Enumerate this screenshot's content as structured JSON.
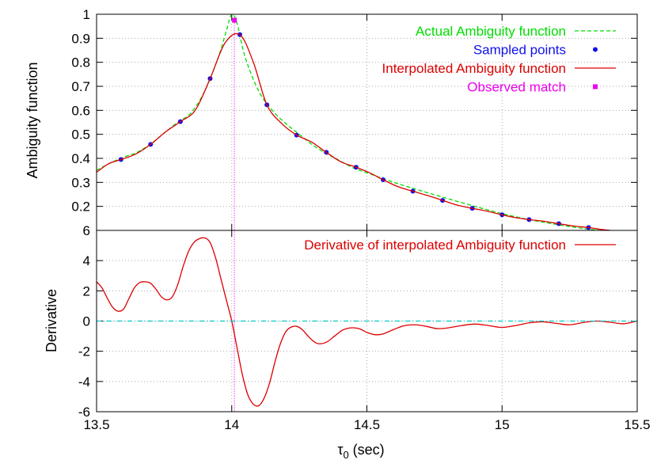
{
  "chart_data": [
    {
      "type": "line",
      "title": "",
      "xlabel": "",
      "ylabel": "Ambiguity function",
      "xlim": [
        13.5,
        15.5
      ],
      "ylim": [
        0.1,
        1.0
      ],
      "yticks": [
        "0.2",
        "0.3",
        "0.4",
        "0.5",
        "0.6",
        "0.7",
        "0.8",
        "0.9",
        "1"
      ],
      "grid": true,
      "legend_position": "top-right",
      "series": [
        {
          "name": "Actual Ambiguity function",
          "style": "dashed",
          "color": "#00dd00",
          "x": [
            13.5,
            13.55,
            13.6,
            13.65,
            13.7,
            13.75,
            13.8,
            13.85,
            13.9,
            13.95,
            13.98,
            14.0,
            14.02,
            14.05,
            14.1,
            14.15,
            14.2,
            14.25,
            14.3,
            14.35,
            14.4,
            14.45,
            14.5,
            14.6,
            14.7,
            14.8,
            14.9,
            15.0,
            15.1,
            15.2,
            15.3,
            15.4
          ],
          "y": [
            0.35,
            0.38,
            0.405,
            0.425,
            0.46,
            0.505,
            0.55,
            0.59,
            0.68,
            0.82,
            0.93,
            1.0,
            0.96,
            0.82,
            0.68,
            0.6,
            0.545,
            0.5,
            0.455,
            0.42,
            0.39,
            0.36,
            0.34,
            0.3,
            0.265,
            0.232,
            0.2,
            0.17,
            0.145,
            0.125,
            0.108,
            0.095
          ]
        },
        {
          "name": "Sampled points",
          "style": "points",
          "color": "#1010ee",
          "x": [
            13.59,
            13.7,
            13.81,
            13.92,
            14.03,
            14.13,
            14.24,
            14.35,
            14.46,
            14.56,
            14.67,
            14.78,
            14.89,
            15.0,
            15.1,
            15.21,
            15.32
          ],
          "y": [
            0.395,
            0.458,
            0.553,
            0.732,
            0.915,
            0.623,
            0.497,
            0.425,
            0.363,
            0.311,
            0.263,
            0.225,
            0.192,
            0.165,
            0.145,
            0.128,
            0.112
          ]
        },
        {
          "name": "Interpolated Ambiguity function",
          "style": "solid",
          "color": "#dd0000",
          "x": [
            13.5,
            13.545,
            13.59,
            13.645,
            13.7,
            13.755,
            13.81,
            13.865,
            13.92,
            13.975,
            14.03,
            14.08,
            14.13,
            14.185,
            14.24,
            14.295,
            14.35,
            14.405,
            14.46,
            14.51,
            14.56,
            14.615,
            14.67,
            14.725,
            14.78,
            14.835,
            14.89,
            14.945,
            15.0,
            15.05,
            15.1,
            15.155,
            15.21,
            15.265,
            15.32,
            15.36,
            15.4
          ],
          "y": [
            0.342,
            0.378,
            0.395,
            0.418,
            0.458,
            0.51,
            0.553,
            0.6,
            0.732,
            0.88,
            0.915,
            0.8,
            0.623,
            0.545,
            0.497,
            0.468,
            0.425,
            0.385,
            0.363,
            0.34,
            0.311,
            0.282,
            0.263,
            0.245,
            0.225,
            0.205,
            0.192,
            0.18,
            0.165,
            0.153,
            0.145,
            0.138,
            0.128,
            0.118,
            0.112,
            0.105,
            0.1
          ]
        },
        {
          "name": "Observed match",
          "style": "points",
          "color": "#ee00ee",
          "x": [
            14.01
          ],
          "y": [
            0.975
          ]
        }
      ]
    },
    {
      "type": "line",
      "title": "",
      "xlabel": "τ0 (sec)",
      "ylabel": "Derivative",
      "xlim": [
        13.5,
        15.5
      ],
      "ylim": [
        -6,
        6
      ],
      "xticks": [
        "13.5",
        "14",
        "14.5",
        "15",
        "15.5"
      ],
      "yticks": [
        "-6",
        "-4",
        "-2",
        "0",
        "2",
        "4",
        "6"
      ],
      "grid": true,
      "legend_position": "top-right",
      "series": [
        {
          "name": "Derivative of interpolated Ambiguity function",
          "style": "solid",
          "color": "#dd0000",
          "x": [
            13.5,
            13.52,
            13.54,
            13.56,
            13.58,
            13.6,
            13.62,
            13.64,
            13.66,
            13.68,
            13.7,
            13.72,
            13.74,
            13.76,
            13.78,
            13.8,
            13.82,
            13.84,
            13.86,
            13.88,
            13.9,
            13.92,
            13.94,
            13.96,
            13.98,
            14.0,
            14.02,
            14.04,
            14.06,
            14.08,
            14.1,
            14.12,
            14.14,
            14.16,
            14.18,
            14.2,
            14.22,
            14.24,
            14.26,
            14.28,
            14.3,
            14.32,
            14.35,
            14.38,
            14.41,
            14.44,
            14.47,
            14.5,
            14.53,
            14.56,
            14.6,
            14.64,
            14.68,
            14.72,
            14.76,
            14.8,
            14.85,
            14.9,
            14.95,
            15.0,
            15.05,
            15.1,
            15.15,
            15.2,
            15.25,
            15.3,
            15.35,
            15.4,
            15.45,
            15.5
          ],
          "y": [
            2.6,
            2.2,
            1.5,
            0.9,
            0.65,
            0.8,
            1.5,
            2.2,
            2.55,
            2.6,
            2.5,
            2.1,
            1.6,
            1.4,
            1.6,
            2.4,
            3.6,
            4.6,
            5.2,
            5.45,
            5.5,
            5.2,
            4.2,
            2.8,
            1.4,
            0.0,
            -1.8,
            -3.6,
            -4.9,
            -5.5,
            -5.6,
            -5.1,
            -4.1,
            -2.7,
            -1.5,
            -0.7,
            -0.4,
            -0.35,
            -0.55,
            -0.95,
            -1.3,
            -1.5,
            -1.4,
            -1.0,
            -0.6,
            -0.45,
            -0.5,
            -0.75,
            -0.9,
            -0.85,
            -0.55,
            -0.3,
            -0.25,
            -0.35,
            -0.5,
            -0.45,
            -0.3,
            -0.2,
            -0.3,
            -0.42,
            -0.3,
            -0.12,
            -0.05,
            -0.15,
            -0.25,
            -0.1,
            0.0,
            -0.08,
            -0.18,
            0.0
          ]
        },
        {
          "name": "",
          "style": "dash-dot",
          "color": "#00cccc",
          "x": [
            13.5,
            15.5
          ],
          "y": [
            0,
            0
          ]
        }
      ]
    }
  ]
}
